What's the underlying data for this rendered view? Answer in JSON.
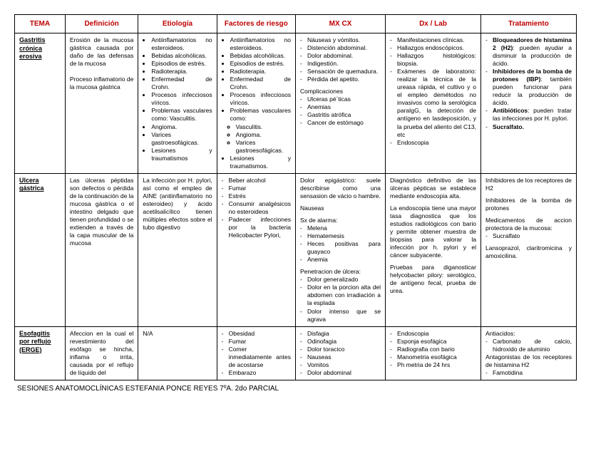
{
  "colors": {
    "header_red": "#c00000",
    "border": "#000000",
    "text": "#000000",
    "background": "#ffffff"
  },
  "fonts": {
    "header_size_pt": 10,
    "body_size_pt": 8.5,
    "footer_size_pt": 10
  },
  "headers": {
    "tema": "TEMA",
    "definicion": "Definición",
    "etiologia": "Etiología",
    "factores": "Factores de riesgo",
    "mxcx": "MX CX",
    "dxlab": "Dx / Lab",
    "tratamiento": "Tratamiento"
  },
  "rows": {
    "gastritis": {
      "tema": "Gastritis crónica erosiva",
      "definicion": "Erosión de la mucosa gástrica causada por daño de las defensas de la mucosa\n\nProceso inflamatorio de la mucosa gástrica",
      "etio_items": [
        "Antiinflamatorios no esteroideos.",
        "Bebidas alcohólicas.",
        "Episodios de estrés.",
        "Radioterapia.",
        "Enfermedad de Crohn.",
        "Procesos infecciosos víricos.",
        "Problemas vasculares como: Vasculitis.",
        "Angioma.",
        "Varices gastroesofágicas.",
        "Lesiones y traumatismos"
      ],
      "factores_items": [
        "Antiinflamatorios no esteroideos.",
        "Bebidas alcohólicas.",
        "Episodios de estrés.",
        "Radioterapia.",
        "Enfermedad de Crohn.",
        "Procesos infecciosos víricos.",
        "Problemas vasculares como:"
      ],
      "factores_sub": [
        "Vasculitis.",
        "Angioma.",
        "Varices gastroesofágicas."
      ],
      "factores_tail": [
        "Lesiones y traumatismos."
      ],
      "mxcx_items": [
        "Náuseas y vómitos.",
        "Distención abdominal.",
        "Dolor abdominal.",
        "Indigestión.",
        "Sensación de quemadura.",
        "Pérdida del apetito."
      ],
      "mxcx_sub_label": "Complicaciones",
      "mxcx_sub": [
        "Ulceras pé´ticas",
        "Anemias",
        "Gastritis atrófica",
        "Cancer de estómago"
      ],
      "dx_items": [
        "Manifestaciones clínicas.",
        "Hallazgos endoscópicos.",
        "Hallazgos histológicos: biopsia.",
        "Exámenes de laboratorio: realizar la técnica de la ureasa rápida, el cultivo y o el empleo demétodos no invasivos como la serológica paraIgG, la detección de antígeno en lasdeposición, y la prueba del aliento del C13, etc",
        "Endoscopia"
      ],
      "tx_items": [
        {
          "bold": "Bloqueadores de histamina 2 (H2)",
          "rest": ": pueden ayudar a disminuir la producción de ácido."
        },
        {
          "bold": "Inhibidores de la bomba de protones (IBP)",
          "rest": ": también pueden funcionar para reducir la producción de ácido."
        },
        {
          "bold": "Antibióticos",
          "rest": ": pueden tratar las infecciones por H. pylori."
        },
        {
          "bold": "Sucralfato.",
          "rest": ""
        }
      ]
    },
    "ulcera": {
      "tema": "Ulcera gástrica",
      "definicion": "Las úlceras péptidas son defectos o pérdida de la continuación de la mucosa gástrica o el intestino delgado que tienen profundidad o se extienden a través de la capa muscular de la mucosa",
      "etio": "La infección por H. pylori, así como el empleo de AINE (antiinflamatorio no esteroideo) y ácido acetilsalicílico tienen múltiples efectos sobre el tubo digestivo",
      "factores_items": [
        "Beber alcohol",
        "Fumar",
        "Estrés",
        "Consumir analgésicos no esteroideos",
        "Padecer infecciones por la bacteria Helicobacter Pylori,"
      ],
      "mxcx_intro": "Dolor epigástrico: suele describirse como una sensasion de vácio o hambre.",
      "mxcx_n": "Nauseas",
      "mxcx_alarm_label": "Sx de alarma:",
      "mxcx_alarm": [
        "Melena",
        "Hematemesis",
        "Heces positivas para guayaco",
        "Anemia"
      ],
      "mxcx_pen_label": "Penetracion de úlcera:",
      "mxcx_pen": [
        "Dolor generalizado",
        "Dolor en la porcion alta del abdomen con irradiación a la esplada",
        "Dolor intenso que se agrava"
      ],
      "dx_p1": "Diagnóstico definitivo de las úlceras pépticas se establece mediante endoscopia alta.",
      "dx_p2": "La endoscopia tiene una mayor tasa diagnostica que los estudios radiológicos con bario y permite obtener muestra de biopsias para valorar la infección por h. pylori y el cáncer subyacente.",
      "dx_p3": "Pruebas para diganosticar helycobacter pilory: serológico, de antígeno fecal, prueba de urea.",
      "tx_p1": "Inhibidores de los receptores de H2",
      "tx_p2": "Inhibidores de la bomba de protones",
      "tx_p3": "Medicamentos de accion protectora de la mucosa:",
      "tx_p3_sub": [
        "Sucralfato"
      ],
      "tx_p4": "Lansoprazol, claritromicina y amoxicilina."
    },
    "erge": {
      "tema": "Esofagitis por reflujo (ERGE)",
      "definicion": "Afeccion en la cual el revestimiento del esófago se hincha, inflama o irrita, causada por el reflujo de líquido del",
      "etio": "N/A",
      "factores_items": [
        "Obesidad",
        "Fumar",
        "Comer inmediatamente antes de acostarse",
        "Embarazo"
      ],
      "mxcx_items": [
        "Disfagia",
        "Odinofagia",
        "Dolor toracico",
        "Nauseas",
        "Vomitos",
        "Dolor abdominal"
      ],
      "dx_items": [
        "Endoscopia",
        "Esponja esofágica",
        "Radiografia con bario",
        "Manometria esofágica",
        "Ph metria de 24 hrs"
      ],
      "tx_label": "Antiacidos:",
      "tx_sub": [
        "Carbonato de calcio, hidroxido de aluminio"
      ],
      "tx_p2": "Antagonistas de los receptores de histamina H2",
      "tx_p2_sub": [
        "Famotidina"
      ]
    }
  },
  "footer": "SESIONES ANATOMOCLÍNICAS ESTEFANIA PONCE REYES 7ºA. 2do PARCIAL"
}
